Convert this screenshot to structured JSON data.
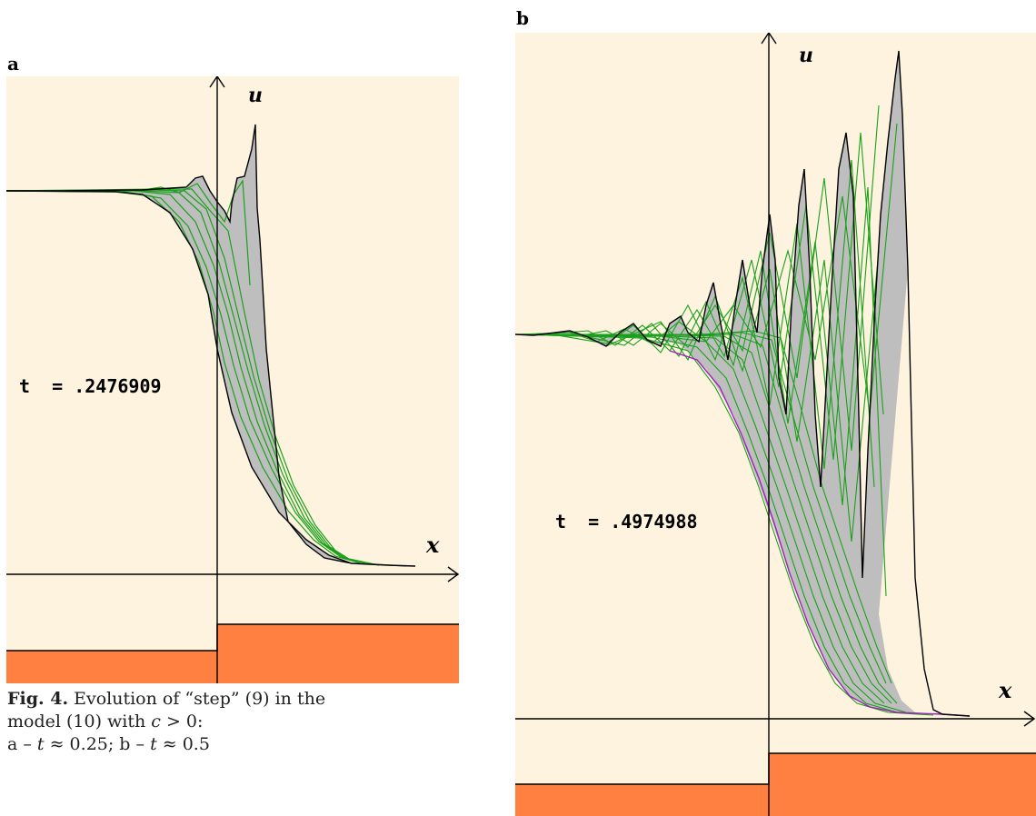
{
  "figure": {
    "panel_a": {
      "letter": "a",
      "axis_u": "u",
      "axis_x": "x",
      "time_label": "t  = .2476909"
    },
    "panel_b": {
      "letter": "b",
      "axis_u": "u",
      "axis_x": "x",
      "time_label": "t  = .4974988"
    },
    "caption": {
      "prefix": "Fig.  4.",
      "line1": " Evolution of “step” (9) in the",
      "line2a": "model (10) with ",
      "c_var": "c",
      "line2b": " > 0:",
      "line3a": "a – ",
      "t_var1": "t",
      "line3b": " ≈ 0.25; b – ",
      "t_var2": "t",
      "line3c": " ≈ 0.5"
    },
    "colors": {
      "background": "#fdf3de",
      "step": "#ff8040",
      "envelope": "#bebebe",
      "curves": "#1aa01a",
      "outline": "#000000",
      "initial": "#a020c0"
    }
  }
}
